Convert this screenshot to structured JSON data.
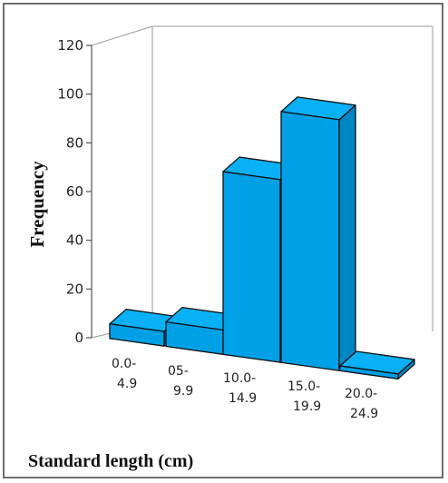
{
  "chart_data": {
    "type": "bar",
    "style": "3d-histogram",
    "categories": [
      [
        "0.0-",
        "4.9"
      ],
      [
        "05-",
        "9.9"
      ],
      [
        "10.0-",
        "14.9"
      ],
      [
        "15.0-",
        "19.9"
      ],
      [
        "20.0-",
        "24.9"
      ]
    ],
    "values": [
      6,
      10,
      75,
      103,
      2
    ],
    "ylabel": "Frequency",
    "xlabel": "Standard length (cm)",
    "ylim": [
      0,
      120
    ],
    "yticks": [
      0,
      20,
      40,
      60,
      80,
      100,
      120
    ],
    "grid": false,
    "colors": {
      "bar_front": "#00a0e6",
      "bar_top": "#0ab0f5",
      "bar_side": "#0085c5",
      "outline": "#111111",
      "axis": "#555555",
      "wall": "#9a9a9a"
    }
  }
}
